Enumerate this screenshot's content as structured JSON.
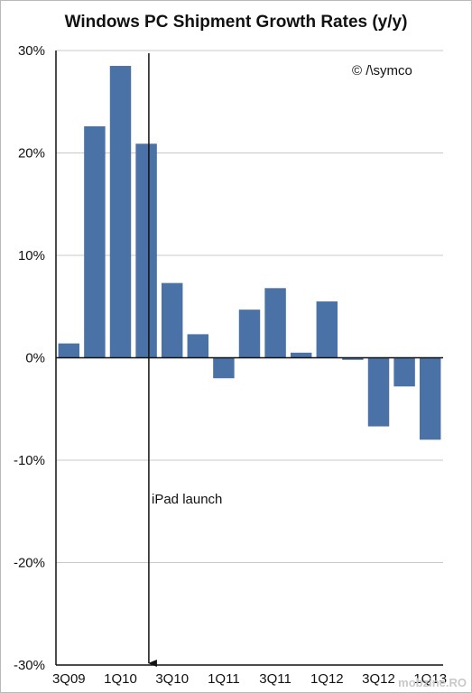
{
  "title": "Windows PC Shipment Growth Rates (y/y)",
  "copyright": "© /\\symco",
  "annotation": "iPad launch",
  "watermark": "mobzine.RO",
  "colors": {
    "bar": "#4a72a6",
    "grid": "#c8c8c8",
    "axis": "#111111"
  },
  "chart_data": {
    "type": "bar",
    "title": "Windows PC Shipment Growth Rates (y/y)",
    "xlabel": "",
    "ylabel": "",
    "ylim": [
      -30,
      30
    ],
    "y_ticks": [
      "-30%",
      "-20%",
      "-10%",
      "0%",
      "10%",
      "20%",
      "30%"
    ],
    "y_tick_values": [
      -30,
      -20,
      -10,
      0,
      10,
      20,
      30
    ],
    "grid": true,
    "categories": [
      "3Q09",
      "4Q09",
      "1Q10",
      "2Q10",
      "3Q10",
      "4Q10",
      "1Q11",
      "2Q11",
      "3Q11",
      "4Q11",
      "1Q12",
      "2Q12",
      "3Q12",
      "4Q12",
      "1Q13"
    ],
    "x_tick_labels": [
      "3Q09",
      "",
      "1Q10",
      "",
      "3Q10",
      "",
      "1Q11",
      "",
      "3Q11",
      "",
      "1Q12",
      "",
      "3Q12",
      "",
      "1Q13"
    ],
    "values": [
      1.4,
      22.6,
      28.5,
      20.9,
      7.3,
      2.3,
      -2.0,
      4.7,
      6.8,
      0.5,
      5.5,
      -0.2,
      -6.7,
      -2.8,
      -8.0
    ],
    "annotations": [
      {
        "text": "iPad launch",
        "x_between": [
          "2Q10"
        ],
        "type": "vertical-arrow"
      }
    ]
  }
}
